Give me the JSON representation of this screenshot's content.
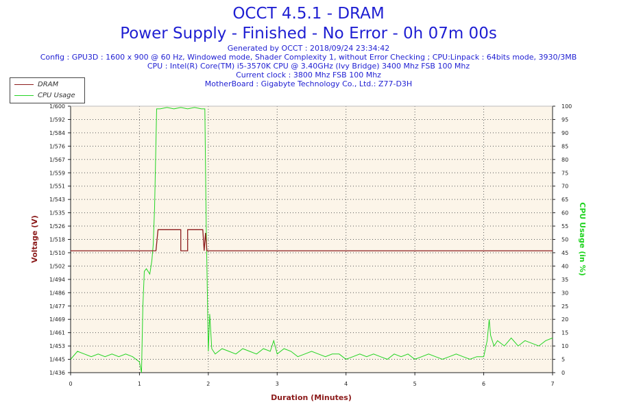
{
  "header": {
    "title": "OCCT 4.5.1 - DRAM",
    "subtitle": "Power Supply - Finished - No Error - 0h 07m 00s",
    "info_lines": [
      "Generated by OCCT : 2018/09/24 23:34:42",
      "Config : GPU3D : 1600 x 900 @ 60 Hz, Windowed mode, Shader Complexity 1, without Error Checking ; CPU:Linpack : 64bits mode, 3930/3MB",
      "CPU : Intel(R) Core(TM) i5-3570K CPU @ 3.40GHz (Ivy Bridge) 3400 Mhz FSB 100 Mhz",
      "Current clock : 3800 Mhz FSB 100 Mhz",
      "MotherBoard : Gigabyte Technology Co., Ltd.: Z77-D3H"
    ]
  },
  "chart_data": {
    "type": "line",
    "xlabel": "Duration (Minutes)",
    "ylabel_left": "Voltage (V)",
    "ylabel_right": "CPU Usage (in %)",
    "xlim": [
      0,
      7
    ],
    "x_ticks": [
      "0",
      "1",
      "2",
      "3",
      "4",
      "5",
      "6",
      "7"
    ],
    "ylim_left": [
      1.436,
      1.6
    ],
    "y_left_ticks": [
      "1/436",
      "1/445",
      "1/453",
      "1/461",
      "1/469",
      "1/477",
      "1/486",
      "1/494",
      "1/502",
      "1/510",
      "1/518",
      "1/526",
      "1/535",
      "1/543",
      "1/551",
      "1/559",
      "1/567",
      "1/576",
      "1/584",
      "1/592",
      "1/600"
    ],
    "ylim_right": [
      0,
      100
    ],
    "y_right_ticks": [
      "0",
      "5",
      "10",
      "15",
      "20",
      "25",
      "30",
      "35",
      "40",
      "45",
      "50",
      "55",
      "60",
      "65",
      "70",
      "75",
      "80",
      "85",
      "90",
      "95",
      "100"
    ],
    "grid": true,
    "legend_position": "top-left",
    "colors": {
      "plot_bg": "#fcf5e9",
      "dram": "#8b1a1a",
      "cpu": "#22d422",
      "left_axis": "#8b1a1a",
      "right_axis": "#22d422",
      "xlabel": "#8b1a1a",
      "grid": "#555555"
    },
    "series": [
      {
        "name": "DRAM",
        "axis": "left",
        "x": [
          0,
          1.24,
          1.27,
          1.3,
          1.6,
          1.6,
          1.7,
          1.7,
          1.92,
          1.94,
          1.96,
          1.98,
          2.0,
          7
        ],
        "y": [
          1.511,
          1.511,
          1.524,
          1.524,
          1.524,
          1.511,
          1.511,
          1.524,
          1.524,
          1.511,
          1.522,
          1.511,
          1.511,
          1.511
        ]
      },
      {
        "name": "CPU Usage",
        "axis": "right",
        "x": [
          0,
          0.1,
          0.2,
          0.3,
          0.4,
          0.5,
          0.6,
          0.7,
          0.8,
          0.9,
          1.0,
          1.03,
          1.05,
          1.07,
          1.1,
          1.15,
          1.18,
          1.2,
          1.22,
          1.25,
          1.3,
          1.4,
          1.5,
          1.6,
          1.7,
          1.8,
          1.9,
          1.95,
          1.97,
          2.0,
          2.02,
          2.05,
          2.1,
          2.2,
          2.3,
          2.4,
          2.5,
          2.6,
          2.7,
          2.8,
          2.9,
          2.95,
          3.0,
          3.1,
          3.2,
          3.3,
          3.4,
          3.5,
          3.6,
          3.7,
          3.8,
          3.9,
          4.0,
          4.1,
          4.2,
          4.3,
          4.4,
          4.5,
          4.6,
          4.7,
          4.8,
          4.9,
          5.0,
          5.1,
          5.2,
          5.3,
          5.4,
          5.5,
          5.6,
          5.7,
          5.8,
          5.9,
          6.0,
          6.05,
          6.08,
          6.1,
          6.15,
          6.2,
          6.3,
          6.4,
          6.5,
          6.6,
          6.7,
          6.8,
          6.9,
          7.0
        ],
        "y": [
          5,
          8,
          7,
          6,
          7,
          6,
          7,
          6,
          7,
          6,
          4,
          0,
          25,
          38,
          39,
          37,
          42,
          48,
          62,
          99,
          99,
          99.5,
          99,
          99.5,
          99,
          99.5,
          99,
          99,
          55,
          8,
          22,
          9,
          7,
          9,
          8,
          7,
          9,
          8,
          7,
          9,
          8,
          12,
          7,
          9,
          8,
          6,
          7,
          8,
          7,
          6,
          7,
          7,
          5,
          6,
          7,
          6,
          7,
          6,
          5,
          7,
          6,
          7,
          5,
          6,
          7,
          6,
          5,
          6,
          7,
          6,
          5,
          6,
          6,
          12,
          20,
          14,
          10,
          12,
          10,
          13,
          10,
          12,
          11,
          10,
          12,
          13
        ]
      }
    ]
  }
}
